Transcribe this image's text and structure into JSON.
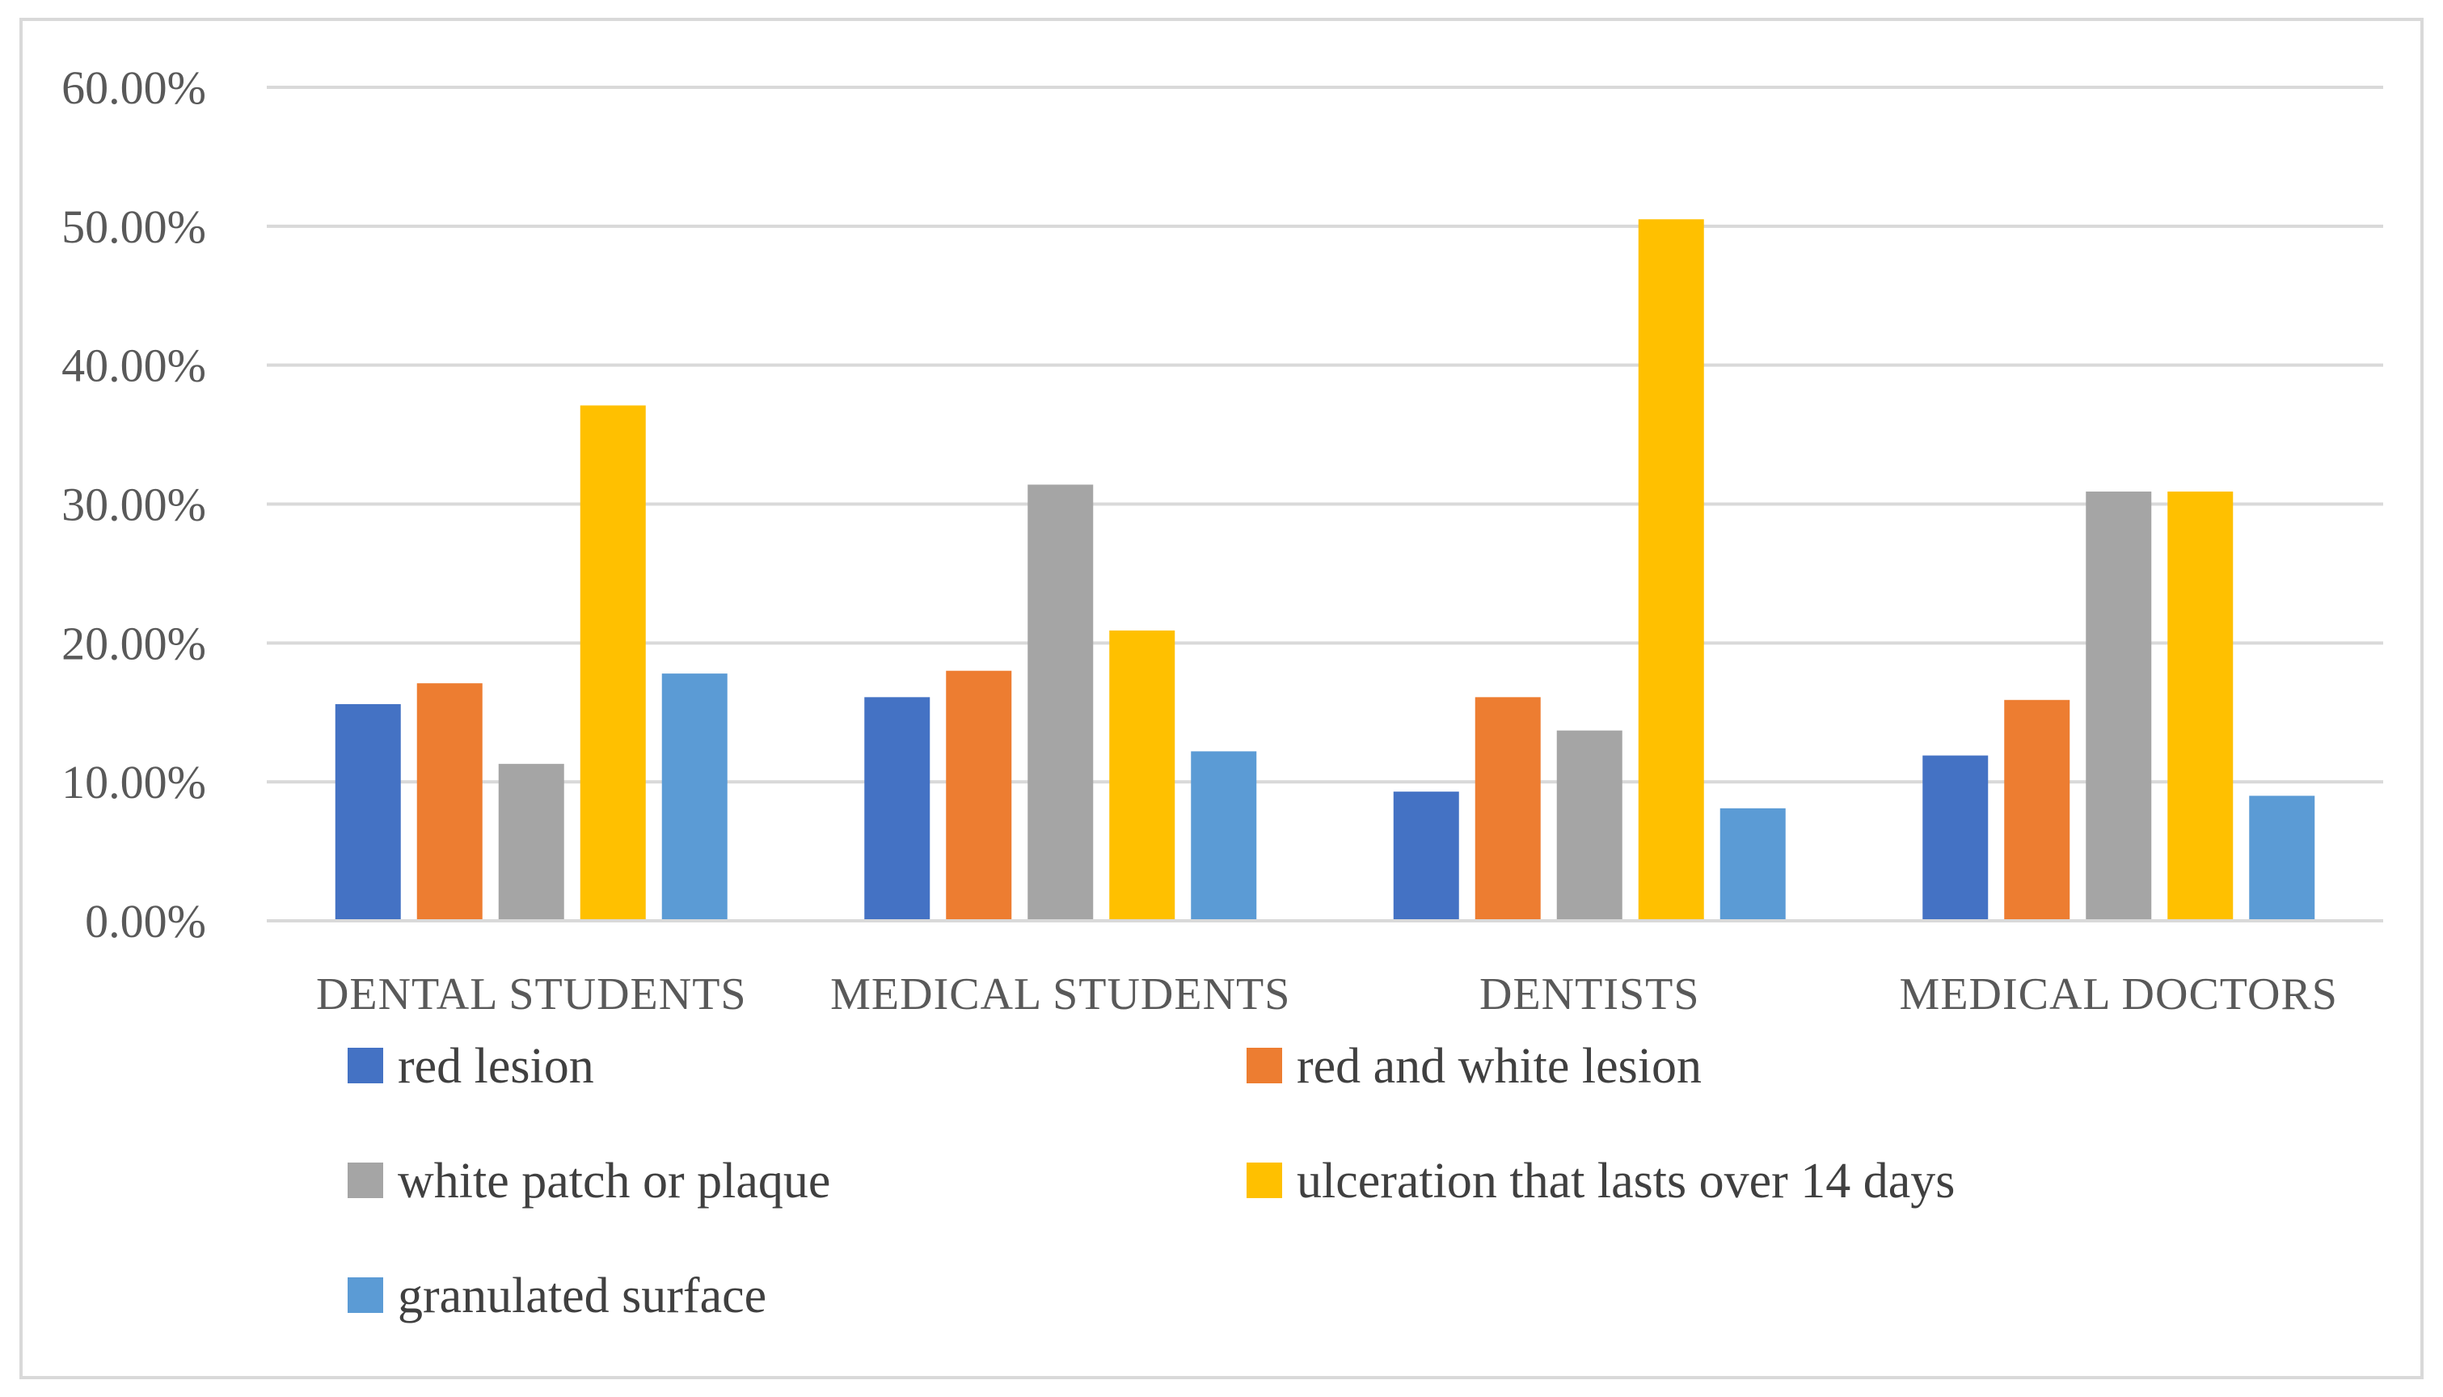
{
  "chart_data": {
    "type": "bar",
    "title": "",
    "xlabel": "",
    "ylabel": "",
    "ylim": [
      0,
      60
    ],
    "yticks": [
      "0.00%",
      "10.00%",
      "20.00%",
      "30.00%",
      "40.00%",
      "50.00%",
      "60.00%"
    ],
    "grid": true,
    "legend_position": "bottom",
    "categories": [
      "DENTAL STUDENTS",
      "MEDICAL STUDENTS",
      "DENTISTS",
      "MEDICAL DOCTORS"
    ],
    "series": [
      {
        "name": "red lesion",
        "color": "#4472C4",
        "values": [
          15.6,
          16.1,
          9.3,
          11.9
        ]
      },
      {
        "name": "red and white lesion",
        "color": "#ED7D31",
        "values": [
          17.1,
          18.0,
          16.1,
          15.9
        ]
      },
      {
        "name": "white patch or plaque",
        "color": "#A5A5A5",
        "values": [
          11.3,
          31.4,
          13.7,
          30.9
        ]
      },
      {
        "name": "ulceration that lasts over 14 days",
        "color": "#FFC000",
        "values": [
          37.1,
          20.9,
          50.5,
          30.9
        ]
      },
      {
        "name": "granulated surface",
        "color": "#5B9BD5",
        "values": [
          17.8,
          12.2,
          8.1,
          9.0
        ]
      }
    ]
  }
}
